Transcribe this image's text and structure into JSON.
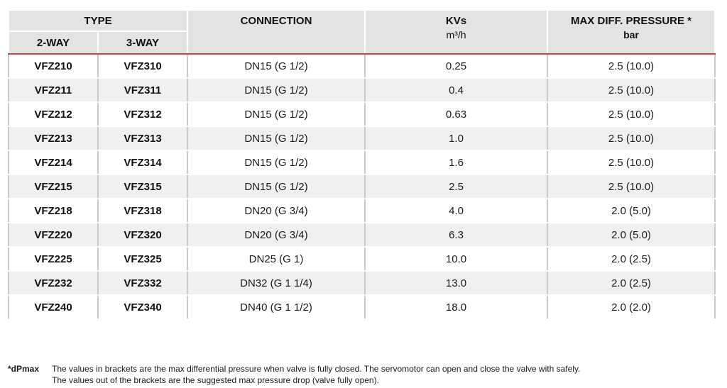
{
  "table": {
    "headers": {
      "type": "TYPE",
      "two_way": "2-WAY",
      "three_way": "3-WAY",
      "connection": "CONNECTION",
      "kvs": "KVs",
      "kvs_unit": "m³/h",
      "max_diff": "MAX DIFF. PRESSURE *",
      "max_diff_unit": "bar"
    },
    "rows": [
      {
        "two_way": "VFZ210",
        "three_way": "VFZ310",
        "connection": "DN15 (G 1/2)",
        "kvs": "0.25",
        "max_diff": "2.5 (10.0)"
      },
      {
        "two_way": "VFZ211",
        "three_way": "VFZ311",
        "connection": "DN15 (G 1/2)",
        "kvs": "0.4",
        "max_diff": "2.5 (10.0)"
      },
      {
        "two_way": "VFZ212",
        "three_way": "VFZ312",
        "connection": "DN15 (G 1/2)",
        "kvs": "0.63",
        "max_diff": "2.5 (10.0)"
      },
      {
        "two_way": "VFZ213",
        "three_way": "VFZ313",
        "connection": "DN15 (G 1/2)",
        "kvs": "1.0",
        "max_diff": "2.5 (10.0)"
      },
      {
        "two_way": "VFZ214",
        "three_way": "VFZ314",
        "connection": "DN15 (G 1/2)",
        "kvs": "1.6",
        "max_diff": "2.5 (10.0)"
      },
      {
        "two_way": "VFZ215",
        "three_way": "VFZ315",
        "connection": "DN15 (G 1/2)",
        "kvs": "2.5",
        "max_diff": "2.5 (10.0)"
      },
      {
        "two_way": "VFZ218",
        "three_way": "VFZ318",
        "connection": "DN20 (G 3/4)",
        "kvs": "4.0",
        "max_diff": "2.0 (5.0)"
      },
      {
        "two_way": "VFZ220",
        "three_way": "VFZ320",
        "connection": "DN20 (G 3/4)",
        "kvs": "6.3",
        "max_diff": "2.0 (5.0)"
      },
      {
        "two_way": "VFZ225",
        "three_way": "VFZ325",
        "connection": "DN25 (G 1)",
        "kvs": "10.0",
        "max_diff": "2.0 (2.5)"
      },
      {
        "two_way": "VFZ232",
        "three_way": "VFZ332",
        "connection": "DN32 (G 1 1/4)",
        "kvs": "13.0",
        "max_diff": "2.0 (2.5)"
      },
      {
        "two_way": "VFZ240",
        "three_way": "VFZ340",
        "connection": "DN40 (G 1 1/2)",
        "kvs": "18.0",
        "max_diff": "2.0 (2.0)"
      }
    ]
  },
  "footnote": {
    "mark": "*dPmax",
    "line1": "The values in brackets are the max differential pressure when valve is fully closed. The servomotor can open and close the valve with safely.",
    "line2": "The values out of the brackets are the suggested max pressure drop (valve fully open)."
  }
}
